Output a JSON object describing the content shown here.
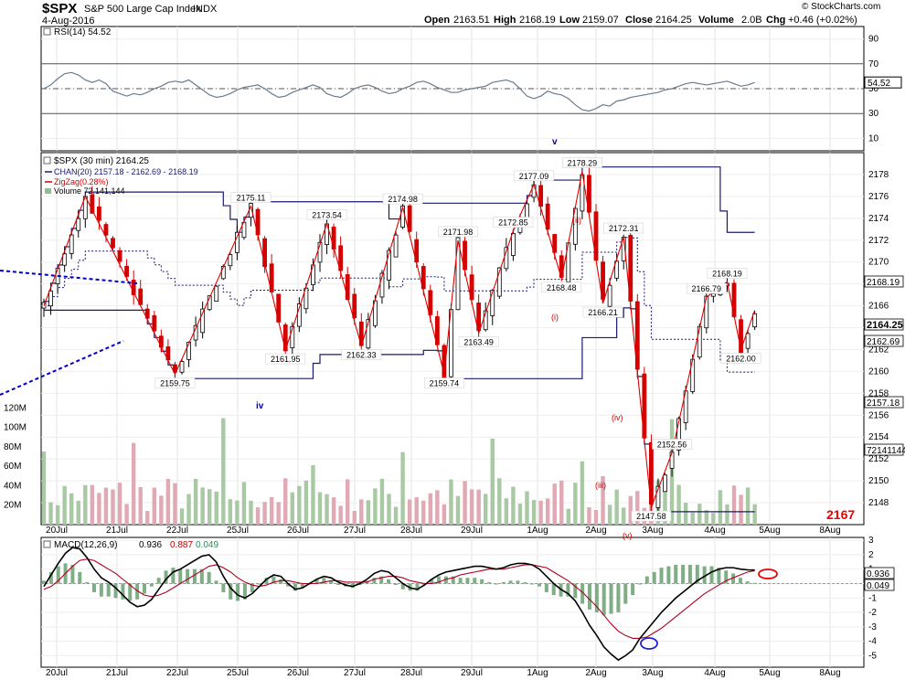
{
  "header": {
    "symbol": "$SPX",
    "name": "S&P 500 Large Cap Index",
    "exchange": "INDX",
    "date": "4-Aug-2016",
    "open_label": "Open",
    "open": "2163.51",
    "high_label": "High",
    "high": "2168.19",
    "low_label": "Low",
    "low": "2159.07",
    "close_label": "Close",
    "close": "2164.25",
    "volume_label": "Volume",
    "volume": "2.0B",
    "chg_label": "Chg",
    "chg": "+0.46 (+0.02%)",
    "watermark": "© StockCharts.com"
  },
  "chart_data": [
    {
      "type": "line",
      "panel": "rsi",
      "legend": "RSI(14) 54.52",
      "current_label": "54.52",
      "ylim": [
        0,
        100
      ],
      "yticks": [
        10,
        30,
        50,
        70,
        90
      ],
      "reference_lines": [
        30,
        50,
        70
      ],
      "values": [
        50,
        53,
        58,
        62,
        63,
        61,
        57,
        55,
        57,
        54,
        48,
        46,
        44,
        46,
        45,
        47,
        50,
        52,
        55,
        56,
        55,
        57,
        53,
        49,
        45,
        43,
        44,
        46,
        49,
        51,
        52,
        53,
        50,
        46,
        43,
        44,
        47,
        49,
        51,
        53,
        51,
        46,
        44,
        43,
        46,
        50,
        52,
        53,
        51,
        48,
        46,
        47,
        50,
        52,
        55,
        56,
        54,
        51,
        49,
        47,
        47,
        49,
        50,
        51,
        52,
        55,
        56,
        57,
        55,
        50,
        44,
        42,
        44,
        48,
        46,
        45,
        42,
        37,
        33,
        32,
        34,
        37,
        36,
        40,
        41,
        43,
        44,
        45,
        46,
        47,
        49,
        50,
        52,
        54,
        55,
        54,
        53,
        54,
        55,
        56,
        54,
        52,
        53,
        55
      ]
    },
    {
      "type": "candlestick",
      "panel": "price",
      "legend": [
        "$SPX (30 min) 2164.25",
        "CHAN(20) 2157.18 - 2162.69 - 2168.19",
        "ZigZag(0.28%)",
        "Volume 72,141,144"
      ],
      "ylim": [
        2146,
        2180
      ],
      "yticks": [
        2148,
        2150,
        2152,
        2154,
        2156,
        2158,
        2160,
        2162,
        2164,
        2166,
        2168,
        2170,
        2172,
        2174,
        2176,
        2178
      ],
      "right_labels": [
        "2168.19",
        "2164.25",
        "2162.69",
        "2157.18",
        "72141144"
      ],
      "wave_labels": [
        "v",
        "iv",
        "(i)",
        "(ii)",
        "(iii)",
        "(iv)",
        "(v)"
      ],
      "target_label": "2167",
      "x_dates": [
        "20Jul",
        "21Jul",
        "22Jul",
        "25Jul",
        "26Jul",
        "27Jul",
        "28Jul",
        "29Jul",
        "1Aug",
        "2Aug",
        "3Aug",
        "4Aug",
        "5Aug",
        "8Aug"
      ],
      "zigzag": [
        {
          "i": 0,
          "v": 2166.0,
          "label": ""
        },
        {
          "i": 6,
          "v": 2176.0,
          "label": ""
        },
        {
          "i": 19,
          "v": 2159.75,
          "label": "2159.75"
        },
        {
          "i": 30,
          "v": 2175.11,
          "label": "2175.11"
        },
        {
          "i": 35,
          "v": 2161.95,
          "label": "2161.95"
        },
        {
          "i": 41,
          "v": 2173.54,
          "label": "2173.54"
        },
        {
          "i": 46,
          "v": 2162.33,
          "label": "2162.33"
        },
        {
          "i": 52,
          "v": 2174.98,
          "label": "2174.98"
        },
        {
          "i": 58,
          "v": 2159.74,
          "label": "2159.74"
        },
        {
          "i": 60,
          "v": 2171.98,
          "label": "2171.98"
        },
        {
          "i": 63,
          "v": 2163.49,
          "label": "2163.49"
        },
        {
          "i": 68,
          "v": 2172.85,
          "label": "2172.85"
        },
        {
          "i": 71,
          "v": 2177.09,
          "label": "2177.09"
        },
        {
          "i": 75,
          "v": 2168.48,
          "label": "2168.48"
        },
        {
          "i": 78,
          "v": 2178.29,
          "label": "2178.29"
        },
        {
          "i": 81,
          "v": 2166.21,
          "label": "2166.21"
        },
        {
          "i": 84,
          "v": 2172.31,
          "label": "2172.31"
        },
        {
          "i": 88,
          "v": 2147.58,
          "label": "2147.58"
        },
        {
          "i": 91,
          "v": 2152.56,
          "label": "2152.56"
        },
        {
          "i": 96,
          "v": 2166.79,
          "label": "2166.79"
        },
        {
          "i": 99,
          "v": 2168.19,
          "label": "2168.19"
        },
        {
          "i": 101,
          "v": 2162.0,
          "label": "2162.00"
        },
        {
          "i": 103,
          "v": 2165.6,
          "label": ""
        }
      ],
      "volume_axis": {
        "ticks": [
          "20M",
          "40M",
          "60M",
          "80M",
          "100M",
          "120M"
        ],
        "tick_values": [
          20,
          40,
          60,
          80,
          100,
          120
        ]
      }
    },
    {
      "type": "line",
      "panel": "macd",
      "legend_prefix": "MACD(12,26,9)",
      "macd_value": "0.936",
      "signal_value": "0.887",
      "hist_value": "0.049",
      "ylim": [
        -5.8,
        3.2
      ],
      "yticks": [
        -5,
        -4,
        -3,
        -2,
        -1,
        0,
        1,
        2,
        3
      ],
      "right_labels": [
        "0.936",
        "0.049"
      ],
      "macd": [
        -0.2,
        0.6,
        1.4,
        2.1,
        2.5,
        2.4,
        1.8,
        1.0,
        0.4,
        0.1,
        -0.3,
        -0.8,
        -1.3,
        -1.6,
        -1.5,
        -1.1,
        -0.4,
        0.3,
        0.8,
        1.0,
        1.3,
        1.6,
        1.9,
        2.0,
        1.5,
        0.5,
        -0.3,
        -0.8,
        -1.0,
        -0.7,
        -0.2,
        0.3,
        0.6,
        0.5,
        0.0,
        -0.4,
        -0.3,
        0.0,
        0.3,
        0.5,
        0.4,
        0.1,
        -0.1,
        -0.2,
        0.0,
        0.3,
        0.7,
        0.9,
        0.8,
        0.4,
        0.0,
        -0.3,
        -0.4,
        -0.1,
        0.3,
        0.6,
        0.8,
        0.9,
        1.0,
        1.1,
        1.2,
        1.2,
        1.1,
        1.0,
        1.1,
        1.3,
        1.4,
        1.4,
        1.3,
        1.0,
        0.5,
        0.0,
        -0.4,
        -0.7,
        -1.2,
        -2.0,
        -2.9,
        -3.6,
        -4.4,
        -4.9,
        -5.3,
        -5.0,
        -4.6,
        -3.8,
        -3.2,
        -2.6,
        -2.0,
        -1.5,
        -1.0,
        -0.6,
        -0.2,
        0.2,
        0.5,
        0.8,
        1.0,
        1.1,
        1.1,
        1.0,
        0.95,
        0.936
      ],
      "signal": [
        -0.4,
        -0.2,
        0.2,
        0.7,
        1.2,
        1.6,
        1.7,
        1.6,
        1.3,
        1.0,
        0.7,
        0.3,
        -0.1,
        -0.5,
        -0.8,
        -0.9,
        -0.8,
        -0.6,
        -0.3,
        0.0,
        0.3,
        0.6,
        0.9,
        1.2,
        1.3,
        1.1,
        0.8,
        0.4,
        0.1,
        -0.1,
        -0.2,
        -0.1,
        0.1,
        0.2,
        0.2,
        0.1,
        0.0,
        0.0,
        0.0,
        0.1,
        0.2,
        0.2,
        0.1,
        0.1,
        0.1,
        0.1,
        0.3,
        0.4,
        0.5,
        0.5,
        0.4,
        0.2,
        0.1,
        0.0,
        0.0,
        0.1,
        0.3,
        0.4,
        0.6,
        0.7,
        0.8,
        0.9,
        1.0,
        1.0,
        1.0,
        1.1,
        1.2,
        1.3,
        1.3,
        1.2,
        1.1,
        0.8,
        0.5,
        0.2,
        -0.2,
        -0.6,
        -1.1,
        -1.6,
        -2.2,
        -2.8,
        -3.3,
        -3.6,
        -3.8,
        -3.8,
        -3.7,
        -3.4,
        -3.1,
        -2.7,
        -2.3,
        -1.9,
        -1.5,
        -1.1,
        -0.7,
        -0.4,
        -0.1,
        0.2,
        0.4,
        0.6,
        0.8,
        0.887
      ]
    }
  ]
}
